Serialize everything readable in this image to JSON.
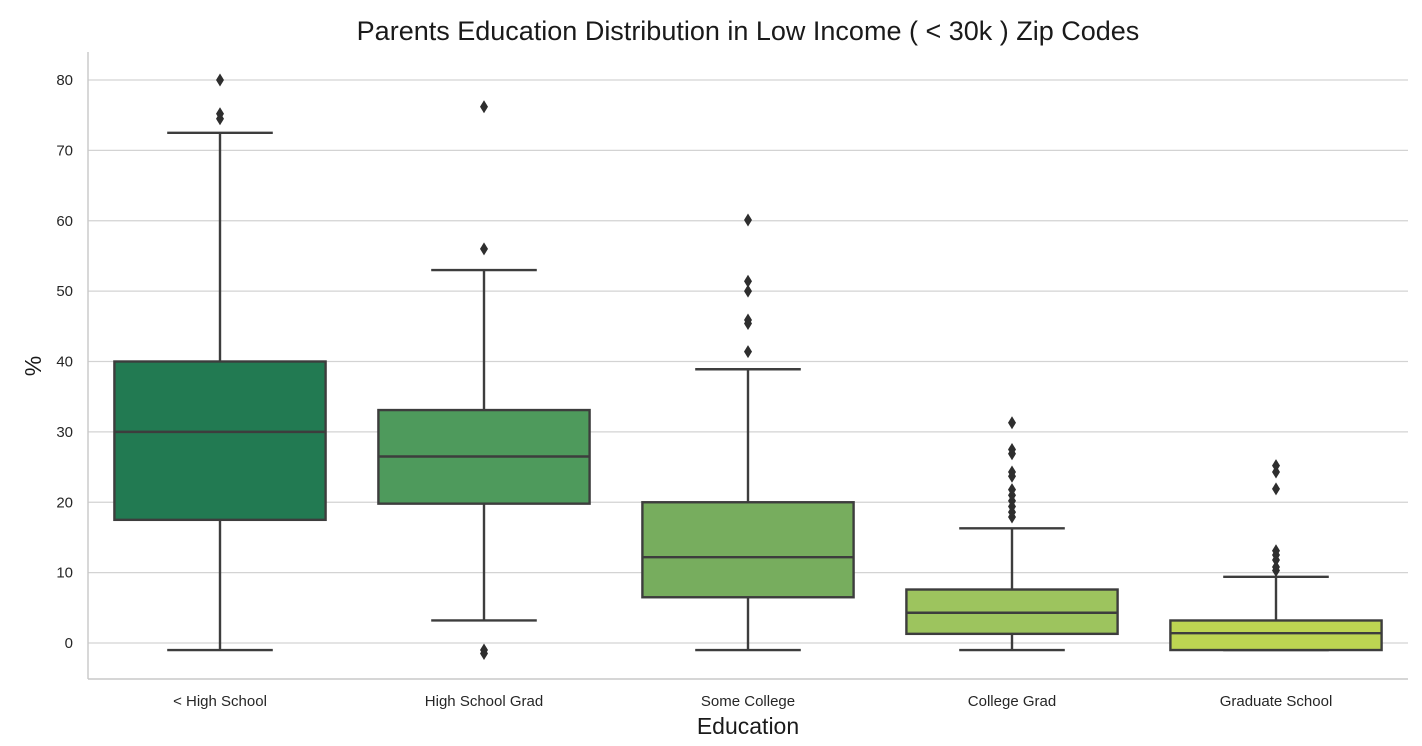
{
  "chart_data": {
    "type": "boxplot",
    "title": "Parents Education Distribution in Low Income ( < 30k ) Zip Codes",
    "xlabel": "Education",
    "ylabel": "%",
    "ylim": [
      -5,
      84
    ],
    "yticks": [
      0,
      10,
      20,
      30,
      40,
      50,
      60,
      70,
      80
    ],
    "grid": "horizontal",
    "categories": [
      "< High School",
      "High School Grad",
      "Some College",
      "College Grad",
      "Graduate School"
    ],
    "boxes": [
      {
        "category": "< High School",
        "whisker_low": -1,
        "q1": 17.5,
        "median": 30,
        "q3": 40,
        "whisker_high": 72.5,
        "outliers": [
          74.5,
          75.2,
          80
        ],
        "color": "#227a52"
      },
      {
        "category": "High School Grad",
        "whisker_low": 3.2,
        "q1": 19.8,
        "median": 26.5,
        "q3": 33.1,
        "whisker_high": 53,
        "outliers": [
          -1,
          -1.5,
          56,
          76.2
        ],
        "color": "#4e9a5c"
      },
      {
        "category": "Some College",
        "whisker_low": -1,
        "q1": 6.5,
        "median": 12.2,
        "q3": 20,
        "whisker_high": 38.9,
        "outliers": [
          41.4,
          45.4,
          45.9,
          50,
          51.4,
          60.1
        ],
        "color": "#77ad5e"
      },
      {
        "category": "College Grad",
        "whisker_low": -1,
        "q1": 1.3,
        "median": 4.3,
        "q3": 7.6,
        "whisker_high": 16.3,
        "outliers": [
          17.9,
          18.6,
          19.4,
          20.2,
          21,
          21.8,
          23.7,
          24.3,
          26.9,
          27.5,
          31.3
        ],
        "color": "#9dc45e"
      },
      {
        "category": "Graduate School",
        "whisker_low": -1,
        "q1": -1,
        "median": 1.4,
        "q3": 3.2,
        "whisker_high": 9.4,
        "outliers": [
          10.3,
          10.8,
          11.8,
          12.5,
          13.1,
          21.9,
          24.3,
          25.2
        ],
        "color": "#bdd552"
      }
    ]
  }
}
